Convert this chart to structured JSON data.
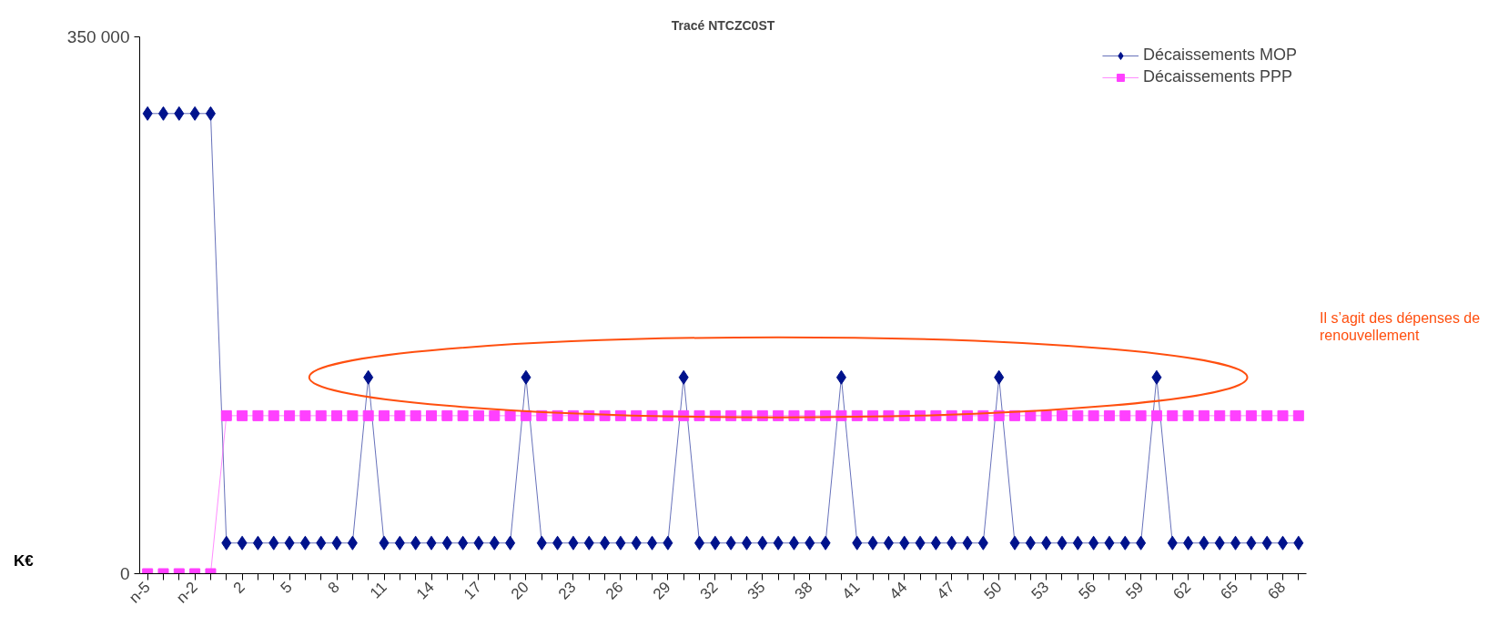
{
  "chart_data": {
    "type": "line",
    "title": "Tracé NTCZC0ST",
    "ylabel": "K€",
    "categories": [
      "n-5",
      null,
      null,
      "n-2",
      null,
      null,
      "2",
      null,
      null,
      "5",
      null,
      null,
      "8",
      null,
      null,
      "11",
      null,
      null,
      "14",
      null,
      null,
      "17",
      null,
      null,
      "20",
      null,
      null,
      "23",
      null,
      null,
      "26",
      null,
      null,
      "29",
      null,
      null,
      "32",
      null,
      null,
      "35",
      null,
      null,
      "38",
      null,
      null,
      "41",
      null,
      null,
      "44",
      null,
      null,
      "47",
      null,
      null,
      "50",
      null,
      null,
      "53",
      null,
      null,
      "56",
      null,
      null,
      "59",
      null,
      null,
      "62",
      null,
      null,
      "65",
      null,
      null,
      "68",
      null
    ],
    "series": [
      {
        "name": "Décaissements MOP",
        "color": "#00128c",
        "marker": "diamond",
        "values": [
          300000,
          300000,
          300000,
          300000,
          300000,
          20000,
          20000,
          20000,
          20000,
          20000,
          20000,
          20000,
          20000,
          20000,
          128000,
          20000,
          20000,
          20000,
          20000,
          20000,
          20000,
          20000,
          20000,
          20000,
          128000,
          20000,
          20000,
          20000,
          20000,
          20000,
          20000,
          20000,
          20000,
          20000,
          128000,
          20000,
          20000,
          20000,
          20000,
          20000,
          20000,
          20000,
          20000,
          20000,
          128000,
          20000,
          20000,
          20000,
          20000,
          20000,
          20000,
          20000,
          20000,
          20000,
          128000,
          20000,
          20000,
          20000,
          20000,
          20000,
          20000,
          20000,
          20000,
          20000,
          128000,
          20000,
          20000,
          20000,
          20000,
          20000,
          20000,
          20000,
          20000,
          20000
        ]
      },
      {
        "name": "Décaissements PPP",
        "color": "#ff40ff",
        "marker": "square",
        "values": [
          0,
          0,
          0,
          0,
          0,
          103000,
          103000,
          103000,
          103000,
          103000,
          103000,
          103000,
          103000,
          103000,
          103000,
          103000,
          103000,
          103000,
          103000,
          103000,
          103000,
          103000,
          103000,
          103000,
          103000,
          103000,
          103000,
          103000,
          103000,
          103000,
          103000,
          103000,
          103000,
          103000,
          103000,
          103000,
          103000,
          103000,
          103000,
          103000,
          103000,
          103000,
          103000,
          103000,
          103000,
          103000,
          103000,
          103000,
          103000,
          103000,
          103000,
          103000,
          103000,
          103000,
          103000,
          103000,
          103000,
          103000,
          103000,
          103000,
          103000,
          103000,
          103000,
          103000,
          103000,
          103000,
          103000,
          103000,
          103000,
          103000,
          103000,
          103000,
          103000,
          103000
        ]
      }
    ],
    "ylim": [
      0,
      350000
    ],
    "yticks": [
      0,
      {
        "value": 350000,
        "label": "350 000"
      }
    ],
    "legend": "top right",
    "annotations": [
      "Il s’agit des dépenses de\nrenouvellement"
    ]
  }
}
